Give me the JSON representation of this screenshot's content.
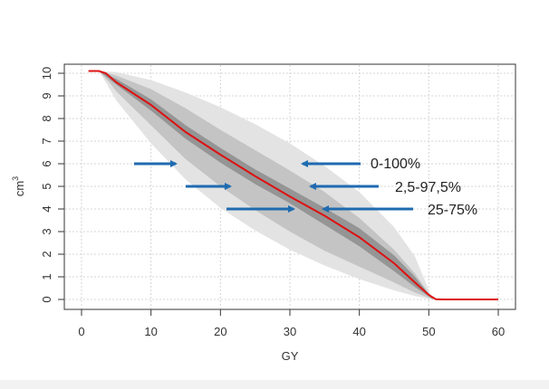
{
  "chart_data": {
    "type": "area",
    "xlabel": "GY",
    "ylabel": "cm",
    "ylabel_superscript": "3",
    "xlim": [
      0,
      60
    ],
    "ylim": [
      0,
      10
    ],
    "x_ticks": [
      "0",
      "10",
      "20",
      "30",
      "40",
      "50",
      "60"
    ],
    "y_ticks": [
      "0",
      "1",
      "2",
      "3",
      "4",
      "5",
      "6",
      "7",
      "8",
      "9",
      "10"
    ],
    "grid": true,
    "bands": [
      {
        "name": "0-100%",
        "color": "#e3e3e3",
        "upper": [
          [
            0,
            10.1
          ],
          [
            2.5,
            10.1
          ],
          [
            5,
            10.05
          ],
          [
            10,
            9.7
          ],
          [
            15,
            9.15
          ],
          [
            20,
            8.5
          ],
          [
            25,
            7.75
          ],
          [
            30,
            6.9
          ],
          [
            35,
            5.9
          ],
          [
            40,
            4.75
          ],
          [
            45,
            3.2
          ],
          [
            48,
            1.9
          ],
          [
            50.5,
            0.05
          ],
          [
            51,
            0
          ]
        ],
        "lower": [
          [
            0,
            10.1
          ],
          [
            2.5,
            10.1
          ],
          [
            3.5,
            9.6
          ],
          [
            5,
            8.8
          ],
          [
            10,
            6.9
          ],
          [
            15,
            5.3
          ],
          [
            20,
            4.05
          ],
          [
            25,
            3.05
          ],
          [
            30,
            2.2
          ],
          [
            35,
            1.5
          ],
          [
            40,
            0.9
          ],
          [
            45,
            0.4
          ],
          [
            48,
            0.15
          ],
          [
            50,
            0.02
          ],
          [
            51,
            0
          ]
        ]
      },
      {
        "name": "2,5-97,5%",
        "color": "#c4c4c4",
        "upper": [
          [
            0,
            10.1
          ],
          [
            2.5,
            10.1
          ],
          [
            5,
            9.9
          ],
          [
            10,
            9.3
          ],
          [
            15,
            8.45
          ],
          [
            20,
            7.5
          ],
          [
            25,
            6.6
          ],
          [
            30,
            5.7
          ],
          [
            35,
            4.75
          ],
          [
            40,
            3.6
          ],
          [
            45,
            2.2
          ],
          [
            48,
            1.15
          ],
          [
            50.5,
            0.05
          ],
          [
            51,
            0
          ]
        ],
        "lower": [
          [
            0,
            10.1
          ],
          [
            2.5,
            10.1
          ],
          [
            4,
            9.6
          ],
          [
            5,
            9.2
          ],
          [
            10,
            7.7
          ],
          [
            15,
            6.2
          ],
          [
            20,
            5.0
          ],
          [
            25,
            3.95
          ],
          [
            30,
            3.0
          ],
          [
            35,
            2.15
          ],
          [
            40,
            1.45
          ],
          [
            45,
            0.75
          ],
          [
            48,
            0.3
          ],
          [
            50.5,
            0.02
          ],
          [
            51,
            0
          ]
        ]
      },
      {
        "name": "25-75%",
        "color": "#959595",
        "upper": [
          [
            0,
            10.1
          ],
          [
            2.5,
            10.1
          ],
          [
            5,
            9.75
          ],
          [
            10,
            8.85
          ],
          [
            15,
            7.7
          ],
          [
            20,
            6.7
          ],
          [
            25,
            5.75
          ],
          [
            30,
            4.9
          ],
          [
            35,
            4.05
          ],
          [
            40,
            3.15
          ],
          [
            45,
            1.95
          ],
          [
            48,
            1.0
          ],
          [
            50.5,
            0.05
          ],
          [
            51,
            0
          ]
        ],
        "lower": [
          [
            0,
            10.1
          ],
          [
            2.5,
            10.1
          ],
          [
            5,
            9.5
          ],
          [
            10,
            8.35
          ],
          [
            15,
            7.1
          ],
          [
            20,
            6.05
          ],
          [
            25,
            5.1
          ],
          [
            30,
            4.25
          ],
          [
            35,
            3.3
          ],
          [
            40,
            2.35
          ],
          [
            45,
            1.25
          ],
          [
            48,
            0.55
          ],
          [
            50.5,
            0.03
          ],
          [
            51,
            0
          ]
        ]
      }
    ],
    "median": {
      "color": "#dd1111",
      "points": [
        [
          1,
          10.1
        ],
        [
          2.5,
          10.1
        ],
        [
          3.5,
          10.0
        ],
        [
          5,
          9.6
        ],
        [
          10,
          8.6
        ],
        [
          15,
          7.4
        ],
        [
          20,
          6.4
        ],
        [
          25,
          5.45
        ],
        [
          30,
          4.55
        ],
        [
          35,
          3.7
        ],
        [
          40,
          2.75
        ],
        [
          45,
          1.6
        ],
        [
          48,
          0.75
        ],
        [
          50,
          0.2
        ],
        [
          51,
          0.01
        ],
        [
          52,
          0
        ],
        [
          60,
          0
        ]
      ]
    },
    "annotations": [
      {
        "label": "0-100%",
        "arrow_color": "#1f6bb0"
      },
      {
        "label": "2,5-97,5%",
        "arrow_color": "#1f6bb0"
      },
      {
        "label": "25-75%",
        "arrow_color": "#1f6bb0"
      }
    ]
  }
}
